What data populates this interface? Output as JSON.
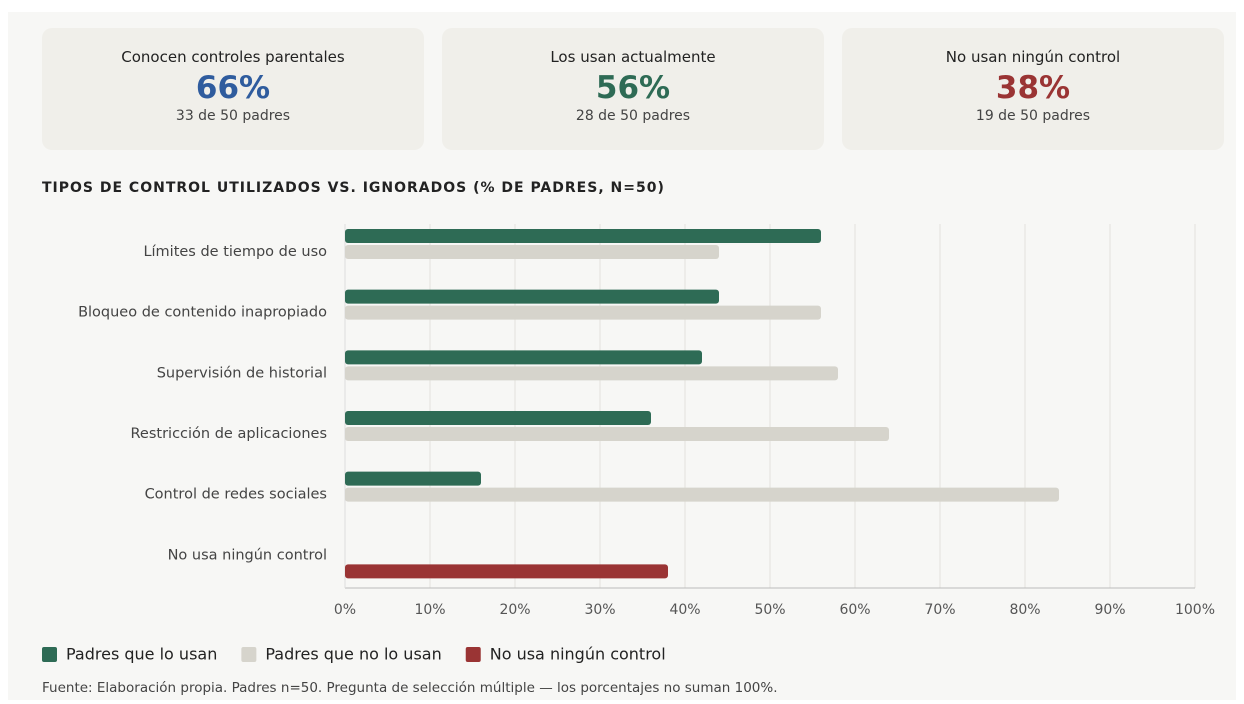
{
  "cards": [
    {
      "label": "Conocen controles parentales",
      "value": "66%",
      "detail": "33 de 50 padres",
      "color": "#2f5c9e"
    },
    {
      "label": "Los usan actualmente",
      "value": "56%",
      "detail": "28 de 50 padres",
      "color": "#2e6b55"
    },
    {
      "label": "No usan ningún control",
      "value": "38%",
      "detail": "19 de 50 padres",
      "color": "#9a3434"
    }
  ],
  "chart_data": {
    "type": "hbar",
    "title": "TIPOS DE CONTROL UTILIZADOS VS. IGNORADOS (% DE PADRES, N=50)",
    "categories": [
      "Límites de tiempo de uso",
      "Bloqueo de contenido inapropiado",
      "Supervisión de historial",
      "Restricción de aplicaciones",
      "Control de redes sociales",
      "No usa ningún control"
    ],
    "series": [
      {
        "name": "Padres que lo usan",
        "color": "#2e6b55",
        "values": [
          56,
          44,
          42,
          36,
          16,
          null
        ]
      },
      {
        "name": "Padres que no lo usan",
        "color": "#d6d4cc",
        "values": [
          44,
          56,
          58,
          64,
          84,
          null
        ]
      },
      {
        "name": "No usa ningún control",
        "color": "#9a3434",
        "values": [
          null,
          null,
          null,
          null,
          null,
          38
        ]
      }
    ],
    "xlim": [
      0,
      100
    ],
    "xticks": [
      {
        "value": 0,
        "label": "0%"
      },
      {
        "value": 10,
        "label": "10%"
      },
      {
        "value": 20,
        "label": "20%"
      },
      {
        "value": 30,
        "label": "30%"
      },
      {
        "value": 40,
        "label": "40%"
      },
      {
        "value": 50,
        "label": "50%"
      },
      {
        "value": 60,
        "label": "60%"
      },
      {
        "value": 70,
        "label": "70%"
      },
      {
        "value": 80,
        "label": "80%"
      },
      {
        "value": 90,
        "label": "90%"
      },
      {
        "value": 100,
        "label": "100%"
      }
    ],
    "grid": true,
    "legend": "bottom",
    "note": "Fuente: Elaboración propia. Padres n=50. Pregunta de selección múltiple — los porcentajes no suman 100%."
  }
}
